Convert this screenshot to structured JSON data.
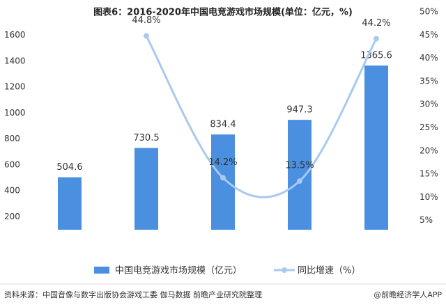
{
  "chart_data": {
    "type": "bar",
    "title": "图表6：2016-2020年中国电竞游戏市场规模(单位：亿元，%)",
    "categories": [
      null,
      null,
      null,
      null,
      null
    ],
    "series": [
      {
        "name": "中国电竞游戏市场规模（亿元）",
        "type": "bar",
        "color": "#4a8fe0",
        "values": [
          504.6,
          730.5,
          834.4,
          947.3,
          1365.6
        ]
      },
      {
        "name": "同比增速（%）",
        "type": "line",
        "axis": "y2",
        "color": "#a9c9ef",
        "values": [
          null,
          44.8,
          14.2,
          13.5,
          44.2
        ],
        "value_labels": [
          null,
          "44.8%",
          "14.2%",
          "13.5%",
          "44.2%"
        ]
      }
    ],
    "ylim": [
      100,
      1780
    ],
    "yticks": [
      200,
      400,
      600,
      800,
      1000,
      1200,
      1400,
      1600
    ],
    "y2lim": [
      3,
      50
    ],
    "y2ticks": [
      {
        "value": 5,
        "label": "5%"
      },
      {
        "value": 10,
        "label": "10%"
      },
      {
        "value": 15,
        "label": "15%"
      },
      {
        "value": 20,
        "label": "20%"
      },
      {
        "value": 25,
        "label": "25%"
      },
      {
        "value": 30,
        "label": "30%"
      },
      {
        "value": 35,
        "label": "35%"
      },
      {
        "value": 40,
        "label": "40%"
      },
      {
        "value": 45,
        "label": "45%"
      },
      {
        "value": 50,
        "label": "50%"
      }
    ],
    "grid": false,
    "legend": "bottom"
  },
  "footer": {
    "source": "资料来源：中国音像与数字出版协会游戏工委 伽马数据 前瞻产业研究院整理",
    "credit": "@前瞻经济学人APP"
  }
}
